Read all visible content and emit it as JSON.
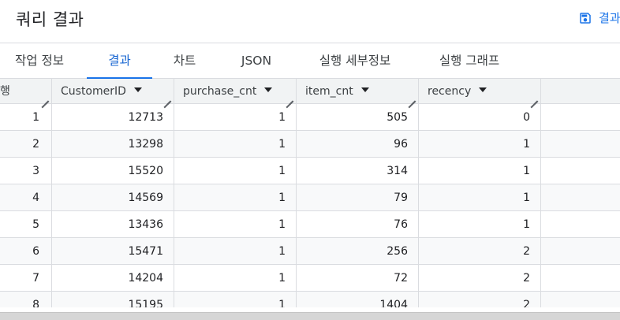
{
  "header": {
    "title": "쿼리 결과",
    "save_label": "결과",
    "save_icon": "save-icon",
    "accent_color": "#1a73e8"
  },
  "tabs": [
    {
      "label": "작업 정보",
      "active": false
    },
    {
      "label": "결과",
      "active": true
    },
    {
      "label": "차트",
      "active": false
    },
    {
      "label": "JSON",
      "active": false
    },
    {
      "label": "실행 세부정보",
      "active": false
    },
    {
      "label": "실행 그래프",
      "active": false
    }
  ],
  "table": {
    "columns": [
      {
        "label": "행",
        "sortable": false
      },
      {
        "label": "CustomerID",
        "sortable": true
      },
      {
        "label": "purchase_cnt",
        "sortable": true
      },
      {
        "label": "item_cnt",
        "sortable": true
      },
      {
        "label": "recency",
        "sortable": true
      }
    ],
    "rows": [
      [
        "1",
        "12713",
        "1",
        "505",
        "0"
      ],
      [
        "2",
        "13298",
        "1",
        "96",
        "1"
      ],
      [
        "3",
        "15520",
        "1",
        "314",
        "1"
      ],
      [
        "4",
        "14569",
        "1",
        "79",
        "1"
      ],
      [
        "5",
        "13436",
        "1",
        "76",
        "1"
      ],
      [
        "6",
        "15471",
        "1",
        "256",
        "2"
      ],
      [
        "7",
        "14204",
        "1",
        "72",
        "2"
      ],
      [
        "8",
        "15195",
        "1",
        "1404",
        "2"
      ]
    ]
  }
}
